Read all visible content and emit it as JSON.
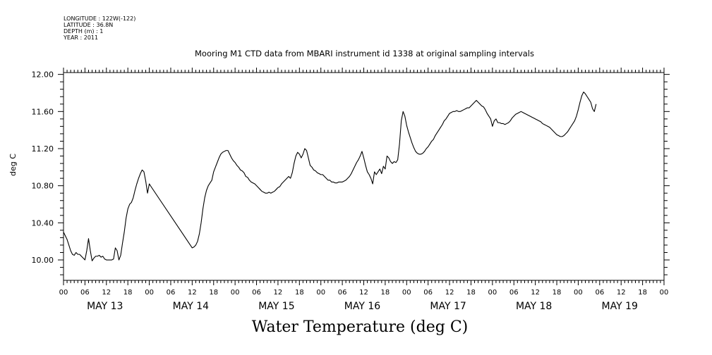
{
  "header": {
    "longitude": "LONGITUDE : 122W(-122)",
    "latitude": "LATITUDE : 36.8N",
    "depth": "DEPTH (m) : 1",
    "year": "YEAR : 2011"
  },
  "colors": {
    "line": "#000000",
    "background": "#ffffff"
  },
  "chart_data": {
    "type": "line",
    "title": "Mooring M1 CTD data from MBARI instrument id 1338 at original sampling intervals",
    "xlabel": "Water Temperature (deg C)",
    "ylabel": "deg C",
    "x_units": "hours since May 13 00:00",
    "xlim": [
      0,
      168
    ],
    "ylim": [
      9.78,
      12.02
    ],
    "y_ticks": [
      10.0,
      10.4,
      10.8,
      11.2,
      11.6,
      12.0
    ],
    "y_tick_labels": [
      "10.00",
      "10.40",
      "10.80",
      "11.20",
      "11.60",
      "12.00"
    ],
    "x_hour_ticks": [
      "00",
      "06",
      "12",
      "18",
      "00",
      "06",
      "12",
      "18",
      "00",
      "06",
      "12",
      "18",
      "00",
      "06",
      "12",
      "18",
      "00",
      "06",
      "12",
      "18",
      "00",
      "06",
      "12",
      "18",
      "00",
      "06",
      "12",
      "18",
      "00"
    ],
    "x_day_labels": [
      "MAY 13",
      "MAY 14",
      "MAY 15",
      "MAY 16",
      "MAY 17",
      "MAY 18",
      "MAY 19"
    ],
    "grid": false,
    "series": [
      {
        "values": [
          [
            0.0,
            10.3
          ],
          [
            0.5,
            10.26
          ],
          [
            1.0,
            10.22
          ],
          [
            1.5,
            10.16
          ],
          [
            2.0,
            10.1
          ],
          [
            2.5,
            10.06
          ],
          [
            3.0,
            10.05
          ],
          [
            3.5,
            10.08
          ],
          [
            4.0,
            10.06
          ],
          [
            4.5,
            10.06
          ],
          [
            5.0,
            10.04
          ],
          [
            5.5,
            10.02
          ],
          [
            6.0,
            10.0
          ],
          [
            6.5,
            10.1
          ],
          [
            7.0,
            10.23
          ],
          [
            7.5,
            10.1
          ],
          [
            8.0,
            9.99
          ],
          [
            8.5,
            10.02
          ],
          [
            9.0,
            10.04
          ],
          [
            9.5,
            10.04
          ],
          [
            10.0,
            10.05
          ],
          [
            10.5,
            10.03
          ],
          [
            11.0,
            10.04
          ],
          [
            11.5,
            10.01
          ],
          [
            12.0,
            10.0
          ],
          [
            12.5,
            10.0
          ],
          [
            13.0,
            10.0
          ],
          [
            13.5,
            10.0
          ],
          [
            14.0,
            10.01
          ],
          [
            14.5,
            10.13
          ],
          [
            15.0,
            10.1
          ],
          [
            15.5,
            10.0
          ],
          [
            16.0,
            10.05
          ],
          [
            16.5,
            10.18
          ],
          [
            17.0,
            10.3
          ],
          [
            17.5,
            10.45
          ],
          [
            18.0,
            10.55
          ],
          [
            18.5,
            10.6
          ],
          [
            19.0,
            10.62
          ],
          [
            19.5,
            10.67
          ],
          [
            20.0,
            10.75
          ],
          [
            20.5,
            10.82
          ],
          [
            21.0,
            10.88
          ],
          [
            21.5,
            10.93
          ],
          [
            22.0,
            10.97
          ],
          [
            22.5,
            10.95
          ],
          [
            23.0,
            10.85
          ],
          [
            23.5,
            10.72
          ],
          [
            24.0,
            10.82
          ],
          [
            24.5,
            10.79
          ],
          [
            36.0,
            10.13
          ],
          [
            36.5,
            10.14
          ],
          [
            37.0,
            10.16
          ],
          [
            37.5,
            10.2
          ],
          [
            38.0,
            10.28
          ],
          [
            38.5,
            10.4
          ],
          [
            39.0,
            10.55
          ],
          [
            39.5,
            10.67
          ],
          [
            40.0,
            10.75
          ],
          [
            40.5,
            10.8
          ],
          [
            41.0,
            10.83
          ],
          [
            41.5,
            10.86
          ],
          [
            42.0,
            10.95
          ],
          [
            42.5,
            11.0
          ],
          [
            43.0,
            11.05
          ],
          [
            43.5,
            11.1
          ],
          [
            44.0,
            11.14
          ],
          [
            44.5,
            11.16
          ],
          [
            45.0,
            11.17
          ],
          [
            45.5,
            11.18
          ],
          [
            46.0,
            11.18
          ],
          [
            46.5,
            11.14
          ],
          [
            47.0,
            11.1
          ],
          [
            47.5,
            11.07
          ],
          [
            48.0,
            11.05
          ],
          [
            48.5,
            11.02
          ],
          [
            49.0,
            11.0
          ],
          [
            49.5,
            10.97
          ],
          [
            50.0,
            10.96
          ],
          [
            50.5,
            10.94
          ],
          [
            51.0,
            10.9
          ],
          [
            51.5,
            10.89
          ],
          [
            52.0,
            10.86
          ],
          [
            52.5,
            10.84
          ],
          [
            53.0,
            10.83
          ],
          [
            53.5,
            10.82
          ],
          [
            54.0,
            10.8
          ],
          [
            54.5,
            10.78
          ],
          [
            55.0,
            10.76
          ],
          [
            55.5,
            10.74
          ],
          [
            56.0,
            10.73
          ],
          [
            56.5,
            10.72
          ],
          [
            57.0,
            10.72
          ],
          [
            57.5,
            10.73
          ],
          [
            58.0,
            10.72
          ],
          [
            58.5,
            10.73
          ],
          [
            59.0,
            10.74
          ],
          [
            59.5,
            10.76
          ],
          [
            60.0,
            10.78
          ],
          [
            60.5,
            10.79
          ],
          [
            61.0,
            10.82
          ],
          [
            61.5,
            10.84
          ],
          [
            62.0,
            10.86
          ],
          [
            62.5,
            10.88
          ],
          [
            63.0,
            10.9
          ],
          [
            63.5,
            10.88
          ],
          [
            64.0,
            10.94
          ],
          [
            64.5,
            11.04
          ],
          [
            65.0,
            11.12
          ],
          [
            65.5,
            11.16
          ],
          [
            66.0,
            11.14
          ],
          [
            66.5,
            11.1
          ],
          [
            67.0,
            11.14
          ],
          [
            67.5,
            11.2
          ],
          [
            68.0,
            11.18
          ],
          [
            68.5,
            11.1
          ],
          [
            69.0,
            11.02
          ],
          [
            69.5,
            11.0
          ],
          [
            70.0,
            10.97
          ],
          [
            70.5,
            10.96
          ],
          [
            71.0,
            10.94
          ],
          [
            71.5,
            10.93
          ],
          [
            72.0,
            10.92
          ],
          [
            72.5,
            10.92
          ],
          [
            73.0,
            10.9
          ],
          [
            73.5,
            10.88
          ],
          [
            74.0,
            10.86
          ],
          [
            74.5,
            10.86
          ],
          [
            75.0,
            10.84
          ],
          [
            75.5,
            10.84
          ],
          [
            76.0,
            10.83
          ],
          [
            76.5,
            10.83
          ],
          [
            77.0,
            10.84
          ],
          [
            77.5,
            10.84
          ],
          [
            78.0,
            10.84
          ],
          [
            78.5,
            10.85
          ],
          [
            79.0,
            10.86
          ],
          [
            79.5,
            10.88
          ],
          [
            80.0,
            10.9
          ],
          [
            80.5,
            10.93
          ],
          [
            81.0,
            10.97
          ],
          [
            81.5,
            11.01
          ],
          [
            82.0,
            11.05
          ],
          [
            82.5,
            11.08
          ],
          [
            83.0,
            11.12
          ],
          [
            83.5,
            11.17
          ],
          [
            84.0,
            11.1
          ],
          [
            84.5,
            11.02
          ],
          [
            85.0,
            10.95
          ],
          [
            85.5,
            10.92
          ],
          [
            86.0,
            10.88
          ],
          [
            86.5,
            10.82
          ],
          [
            87.0,
            10.95
          ],
          [
            87.5,
            10.92
          ],
          [
            88.0,
            10.95
          ],
          [
            88.5,
            10.98
          ],
          [
            89.0,
            10.93
          ],
          [
            89.5,
            11.01
          ],
          [
            90.0,
            10.98
          ],
          [
            90.5,
            11.12
          ],
          [
            91.0,
            11.1
          ],
          [
            91.5,
            11.06
          ],
          [
            92.0,
            11.04
          ],
          [
            92.5,
            11.06
          ],
          [
            93.0,
            11.05
          ],
          [
            93.5,
            11.08
          ],
          [
            94.0,
            11.25
          ],
          [
            94.5,
            11.5
          ],
          [
            95.0,
            11.6
          ],
          [
            95.5,
            11.55
          ],
          [
            96.0,
            11.45
          ],
          [
            96.5,
            11.38
          ],
          [
            97.0,
            11.32
          ],
          [
            97.5,
            11.26
          ],
          [
            98.0,
            11.21
          ],
          [
            98.5,
            11.17
          ],
          [
            99.0,
            11.15
          ],
          [
            99.5,
            11.14
          ],
          [
            100.0,
            11.14
          ],
          [
            100.5,
            11.15
          ],
          [
            101.0,
            11.17
          ],
          [
            101.5,
            11.2
          ],
          [
            102.0,
            11.22
          ],
          [
            102.5,
            11.25
          ],
          [
            103.0,
            11.28
          ],
          [
            103.5,
            11.3
          ],
          [
            104.0,
            11.34
          ],
          [
            104.5,
            11.37
          ],
          [
            105.0,
            11.4
          ],
          [
            105.5,
            11.43
          ],
          [
            106.0,
            11.46
          ],
          [
            106.5,
            11.5
          ],
          [
            107.0,
            11.52
          ],
          [
            107.5,
            11.55
          ],
          [
            108.0,
            11.58
          ],
          [
            108.5,
            11.59
          ],
          [
            109.0,
            11.6
          ],
          [
            109.5,
            11.6
          ],
          [
            110.0,
            11.61
          ],
          [
            110.5,
            11.6
          ],
          [
            111.0,
            11.6
          ],
          [
            111.5,
            11.61
          ],
          [
            112.0,
            11.62
          ],
          [
            112.5,
            11.63
          ],
          [
            113.0,
            11.64
          ],
          [
            113.5,
            11.64
          ],
          [
            114.0,
            11.66
          ],
          [
            114.5,
            11.68
          ],
          [
            115.0,
            11.7
          ],
          [
            115.5,
            11.72
          ],
          [
            116.0,
            11.7
          ],
          [
            116.5,
            11.68
          ],
          [
            117.0,
            11.66
          ],
          [
            117.5,
            11.65
          ],
          [
            118.0,
            11.62
          ],
          [
            118.5,
            11.58
          ],
          [
            119.0,
            11.55
          ],
          [
            119.5,
            11.52
          ],
          [
            120.0,
            11.44
          ],
          [
            120.5,
            11.5
          ],
          [
            121.0,
            11.52
          ],
          [
            121.5,
            11.48
          ],
          [
            122.0,
            11.48
          ],
          [
            122.5,
            11.47
          ],
          [
            123.0,
            11.47
          ],
          [
            123.5,
            11.46
          ],
          [
            124.0,
            11.47
          ],
          [
            124.5,
            11.48
          ],
          [
            125.0,
            11.5
          ],
          [
            125.5,
            11.53
          ],
          [
            126.0,
            11.55
          ],
          [
            126.5,
            11.57
          ],
          [
            127.0,
            11.58
          ],
          [
            127.5,
            11.59
          ],
          [
            128.0,
            11.6
          ],
          [
            128.5,
            11.59
          ],
          [
            129.0,
            11.58
          ],
          [
            129.5,
            11.57
          ],
          [
            130.0,
            11.56
          ],
          [
            130.5,
            11.55
          ],
          [
            131.0,
            11.54
          ],
          [
            131.5,
            11.53
          ],
          [
            132.0,
            11.52
          ],
          [
            132.5,
            11.51
          ],
          [
            133.0,
            11.5
          ],
          [
            133.5,
            11.49
          ],
          [
            134.0,
            11.47
          ],
          [
            134.5,
            11.46
          ],
          [
            135.0,
            11.45
          ],
          [
            135.5,
            11.44
          ],
          [
            136.0,
            11.43
          ],
          [
            136.5,
            11.41
          ],
          [
            137.0,
            11.39
          ],
          [
            137.5,
            11.37
          ],
          [
            138.0,
            11.35
          ],
          [
            138.5,
            11.34
          ],
          [
            139.0,
            11.33
          ],
          [
            139.5,
            11.33
          ],
          [
            140.0,
            11.34
          ],
          [
            140.5,
            11.36
          ],
          [
            141.0,
            11.38
          ],
          [
            141.5,
            11.41
          ],
          [
            142.0,
            11.44
          ],
          [
            142.5,
            11.47
          ],
          [
            143.0,
            11.5
          ],
          [
            143.5,
            11.55
          ],
          [
            144.0,
            11.62
          ],
          [
            144.5,
            11.7
          ],
          [
            145.0,
            11.77
          ],
          [
            145.5,
            11.81
          ],
          [
            146.0,
            11.79
          ],
          [
            146.5,
            11.76
          ],
          [
            147.0,
            11.73
          ],
          [
            147.5,
            11.7
          ],
          [
            148.0,
            11.63
          ],
          [
            148.5,
            11.6
          ],
          [
            149.0,
            11.68
          ]
        ]
      }
    ]
  }
}
